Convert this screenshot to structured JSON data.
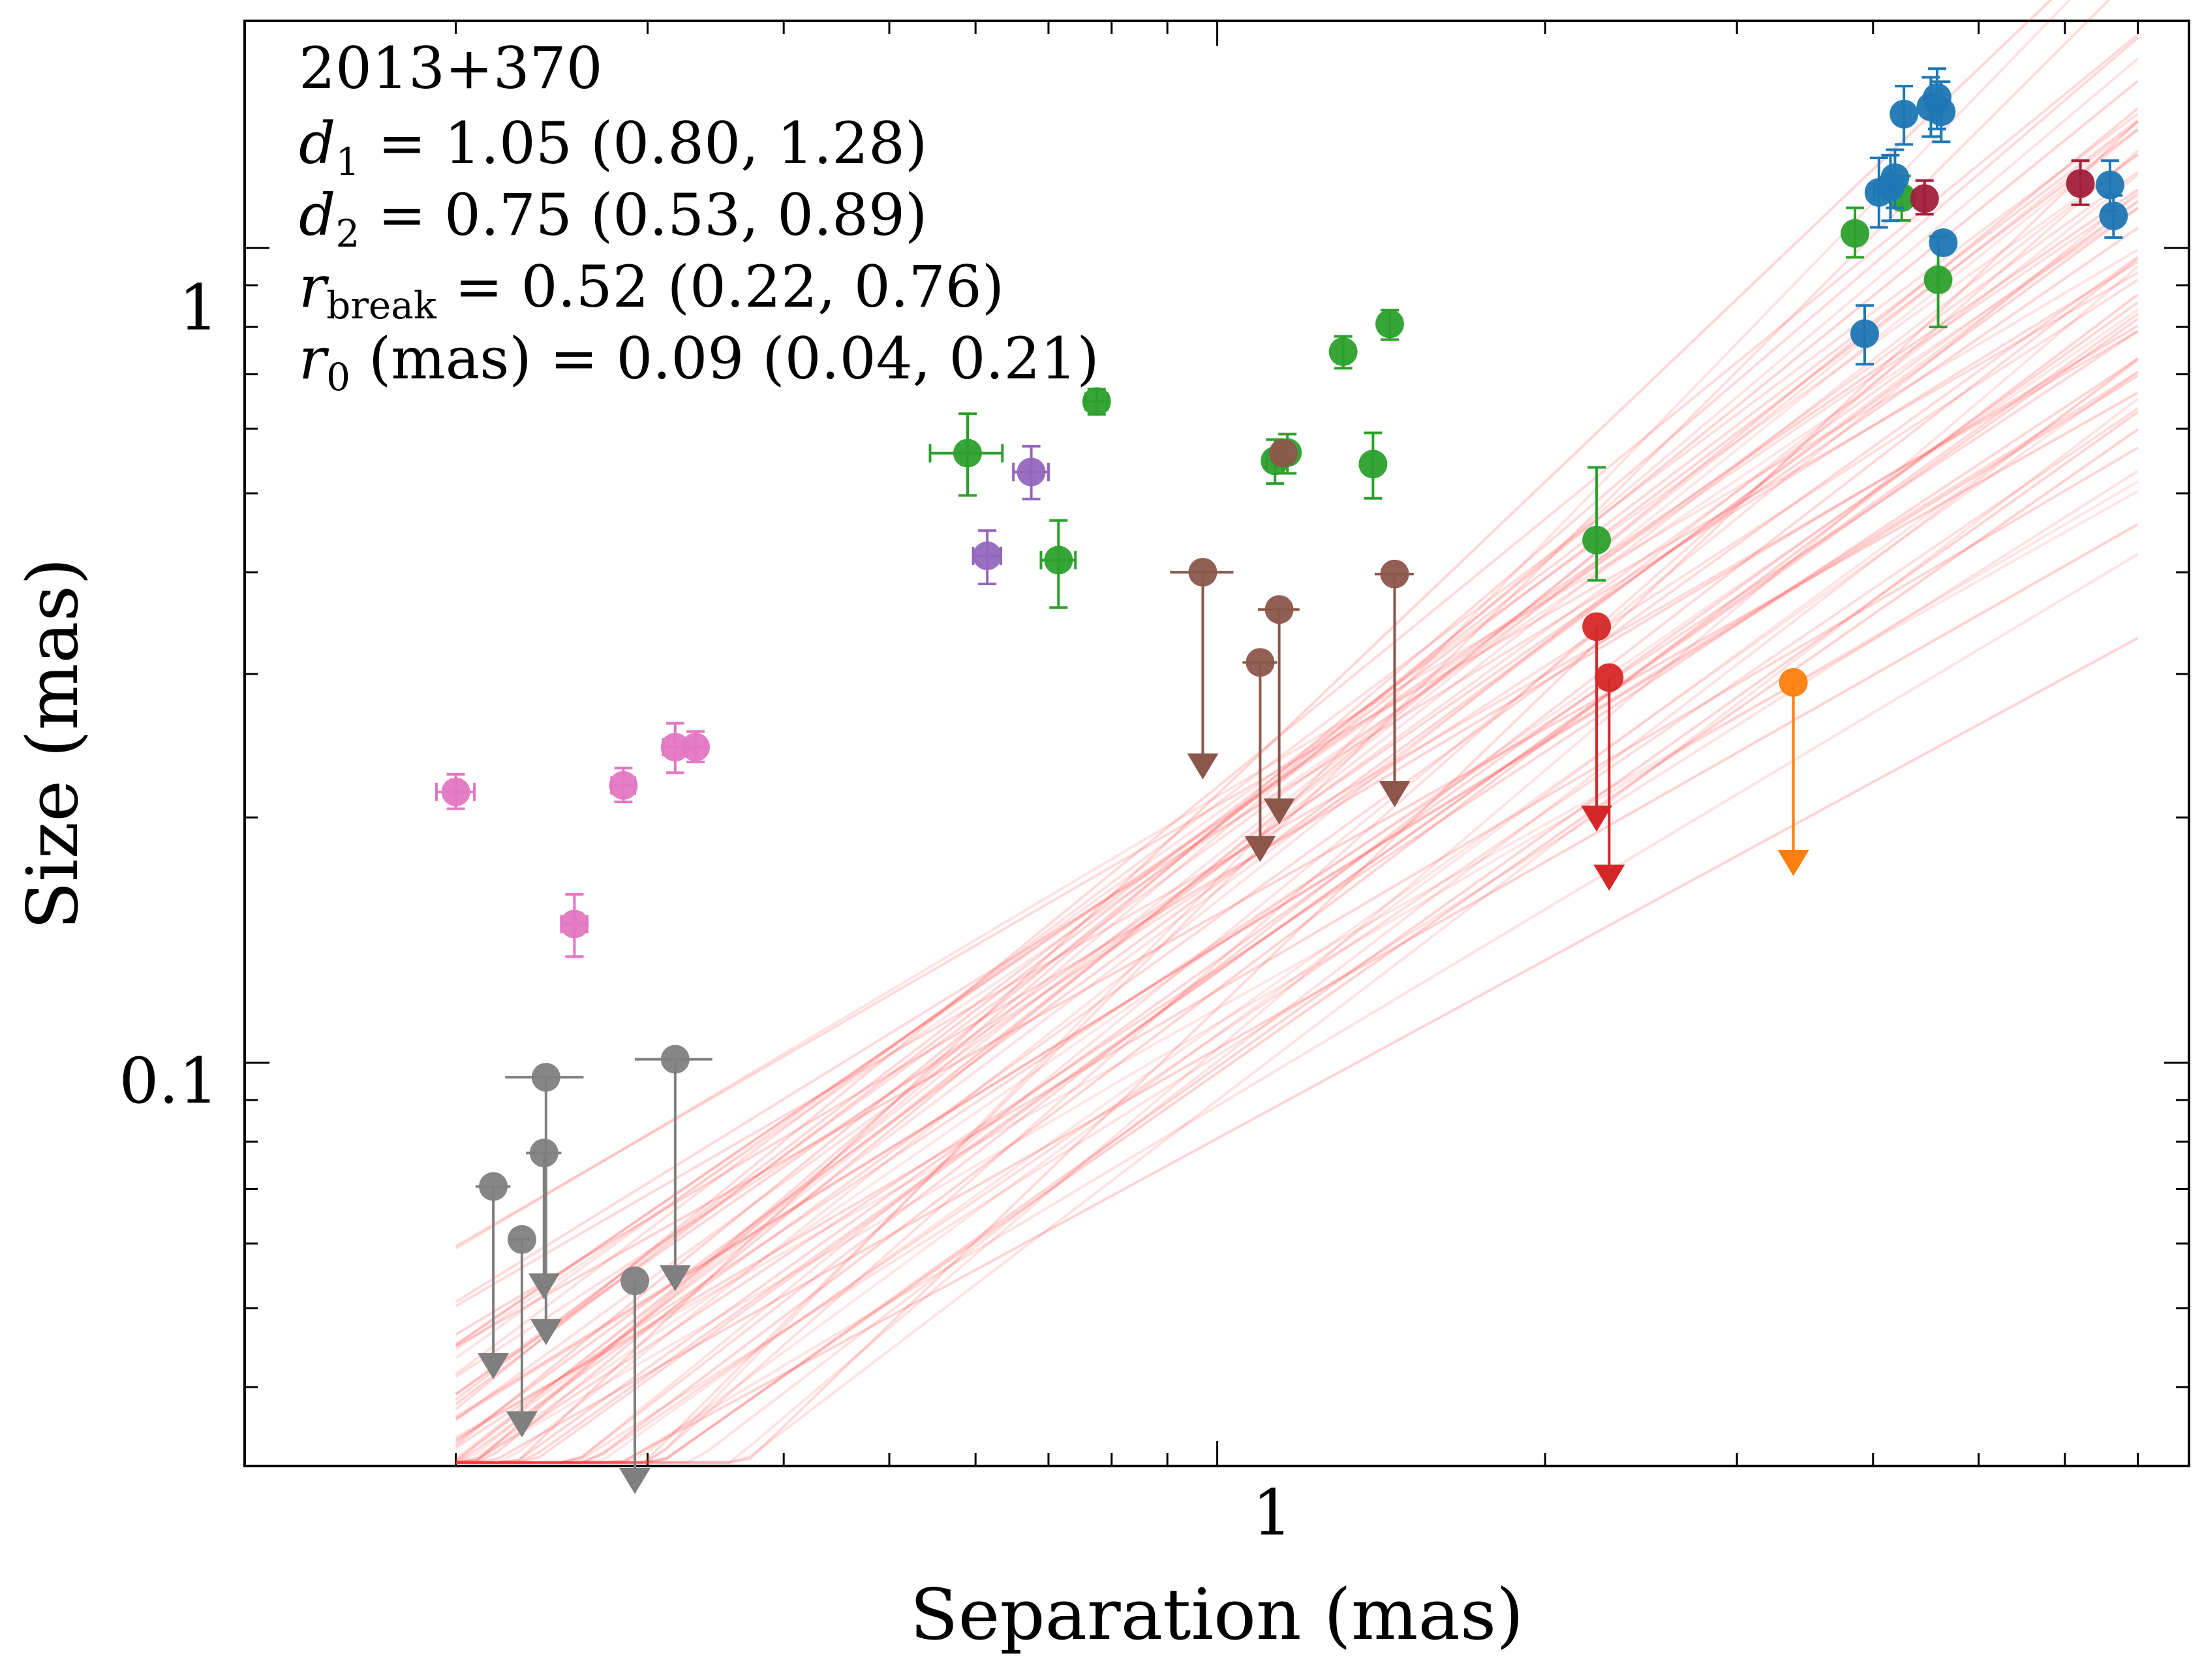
{
  "chart_data": {
    "type": "scatter",
    "title": "2013+370",
    "xlabel": "Separation (mas)",
    "ylabel": "Size (mas)",
    "xscale": "log",
    "yscale": "log",
    "xlim": [
      0.128,
      7.8
    ],
    "ylim": [
      0.032,
      1.9
    ],
    "x_tick_labels": [
      {
        "value": 1,
        "label": "1"
      }
    ],
    "y_tick_labels": [
      {
        "value": 0.1,
        "label": "0.1"
      },
      {
        "value": 1,
        "label": "1"
      }
    ],
    "grid": false,
    "annotations": [
      {
        "key": "source",
        "text": "2013+370"
      },
      {
        "key": "d1",
        "sym": "d",
        "sub": "1",
        "text": " = 1.05 (0.80, 1.28)"
      },
      {
        "key": "d2",
        "sym": "d",
        "sub": "2",
        "text": " = 0.75 (0.53, 0.89)"
      },
      {
        "key": "rbreak",
        "sym": "r",
        "sub": "break",
        "text": " = 0.52 (0.22, 0.76)"
      },
      {
        "key": "r0",
        "sym": "r",
        "sub": "0",
        "text": " (mas) = 0.09 (0.04, 0.21)"
      }
    ],
    "model": {
      "name": "broken power-law posterior draws",
      "color": "#ff3333",
      "n_draws": 60,
      "x_range": [
        0.2,
        7.0
      ],
      "median": {
        "d1": 1.05,
        "d2": 0.75,
        "r_break": 0.52,
        "r0": 0.09
      }
    },
    "series": [
      {
        "name": "pink",
        "color": "#e377c2",
        "points": [
          {
            "x": 0.2,
            "y": 0.215,
            "ylo": 0.205,
            "yhi": 0.226,
            "xerr": 0.008
          },
          {
            "x": 0.257,
            "y": 0.148,
            "ylo": 0.135,
            "yhi": 0.161,
            "xerr": 0.007
          },
          {
            "x": 0.285,
            "y": 0.219,
            "ylo": 0.209,
            "yhi": 0.23,
            "xerr": 0.007
          },
          {
            "x": 0.318,
            "y": 0.244,
            "ylo": 0.227,
            "yhi": 0.261,
            "xerr": 0.008
          },
          {
            "x": 0.332,
            "y": 0.244,
            "ylo": 0.234,
            "yhi": 0.255,
            "xerr": 0.007
          }
        ]
      },
      {
        "name": "purple",
        "color": "#9467bd",
        "points": [
          {
            "x": 0.615,
            "y": 0.419,
            "ylo": 0.387,
            "yhi": 0.45,
            "xerr": 0.018
          },
          {
            "x": 0.675,
            "y": 0.531,
            "ylo": 0.492,
            "yhi": 0.571,
            "xerr": 0.025
          }
        ]
      },
      {
        "name": "green",
        "color": "#2ca02c",
        "points": [
          {
            "x": 0.59,
            "y": 0.56,
            "ylo": 0.497,
            "yhi": 0.626,
            "xerr": 0.045
          },
          {
            "x": 0.715,
            "y": 0.414,
            "ylo": 0.362,
            "yhi": 0.463,
            "xerr": 0.026
          },
          {
            "x": 0.775,
            "y": 0.648,
            "ylo": 0.625,
            "yhi": 0.671,
            "xerr": 0.018
          },
          {
            "x": 1.13,
            "y": 0.548,
            "ylo": 0.514,
            "yhi": 0.582,
            "xerr": 0.02
          },
          {
            "x": 1.16,
            "y": 0.561,
            "ylo": 0.529,
            "yhi": 0.591,
            "xerr": 0.0
          },
          {
            "x": 1.305,
            "y": 0.746,
            "ylo": 0.712,
            "yhi": 0.779,
            "xerr": 0.0
          },
          {
            "x": 1.39,
            "y": 0.543,
            "ylo": 0.493,
            "yhi": 0.593,
            "xerr": 0.0
          },
          {
            "x": 1.44,
            "y": 0.807,
            "ylo": 0.772,
            "yhi": 0.839,
            "xerr": 0.0
          },
          {
            "x": 2.23,
            "y": 0.438,
            "ylo": 0.391,
            "yhi": 0.538,
            "xerr": 0.0
          },
          {
            "x": 3.85,
            "y": 1.042,
            "ylo": 0.974,
            "yhi": 1.12,
            "xerr": 0.0
          },
          {
            "x": 4.25,
            "y": 1.153,
            "ylo": 1.081,
            "yhi": 1.226,
            "xerr": 0.0
          },
          {
            "x": 4.59,
            "y": 0.914,
            "ylo": 0.8,
            "yhi": 1.033,
            "xerr": 0.0
          }
        ]
      },
      {
        "name": "blue",
        "color": "#1f77b4",
        "points": [
          {
            "x": 3.93,
            "y": 0.785,
            "ylo": 0.72,
            "yhi": 0.85,
            "xerr": 0.0
          },
          {
            "x": 4.05,
            "y": 1.17,
            "ylo": 1.06,
            "yhi": 1.29,
            "xerr": 0.04
          },
          {
            "x": 4.15,
            "y": 1.19,
            "ylo": 1.08,
            "yhi": 1.3,
            "xerr": 0.05
          },
          {
            "x": 4.19,
            "y": 1.22,
            "ylo": 1.12,
            "yhi": 1.32,
            "xerr": 0.0
          },
          {
            "x": 4.27,
            "y": 1.46,
            "ylo": 1.34,
            "yhi": 1.58,
            "xerr": 0.0
          },
          {
            "x": 4.52,
            "y": 1.49,
            "ylo": 1.37,
            "yhi": 1.62,
            "xerr": 0.0
          },
          {
            "x": 4.58,
            "y": 1.53,
            "ylo": 1.4,
            "yhi": 1.66,
            "xerr": 0.0
          },
          {
            "x": 4.62,
            "y": 1.47,
            "ylo": 1.35,
            "yhi": 1.6,
            "xerr": 0.0
          },
          {
            "x": 4.64,
            "y": 1.015,
            "ylo": 0.0,
            "yhi": 0.0,
            "xerr": 0.0
          },
          {
            "x": 6.65,
            "y": 1.095,
            "ylo": 1.03,
            "yhi": 1.16,
            "xerr": 0.0
          },
          {
            "x": 6.6,
            "y": 1.195,
            "ylo": 1.11,
            "yhi": 1.28,
            "xerr": 0.0
          }
        ]
      },
      {
        "name": "darkred",
        "color": "#a11f3a",
        "points": [
          {
            "x": 4.46,
            "y": 1.15,
            "ylo": 1.1,
            "yhi": 1.21,
            "xerr": 0.0
          },
          {
            "x": 6.2,
            "y": 1.2,
            "ylo": 1.13,
            "yhi": 1.28,
            "xerr": 0.0
          }
        ]
      },
      {
        "name": "brown (upper limits)",
        "color": "#8c564b",
        "points": [
          {
            "x": 0.97,
            "y": 0.4,
            "lim": 0.226,
            "xerr": 0.065
          },
          {
            "x": 1.095,
            "y": 0.31,
            "lim": 0.179,
            "xerr": 0.04
          },
          {
            "x": 1.14,
            "y": 0.36,
            "lim": 0.199,
            "xerr": 0.05
          },
          {
            "x": 1.455,
            "y": 0.398,
            "lim": 0.209,
            "xerr": 0.06
          },
          {
            "x": 1.15,
            "y": 0.56,
            "lim": null,
            "xerr": 0.0
          }
        ]
      },
      {
        "name": "red (upper limits)",
        "color": "#d62728",
        "points": [
          {
            "x": 2.23,
            "y": 0.343,
            "lim": 0.195,
            "xerr": 0.0
          },
          {
            "x": 2.29,
            "y": 0.297,
            "lim": 0.165,
            "xerr": 0.0
          }
        ]
      },
      {
        "name": "orange (upper limit)",
        "color": "#ff7f0e",
        "points": [
          {
            "x": 3.38,
            "y": 0.293,
            "lim": 0.172,
            "xerr": 0.0
          }
        ]
      },
      {
        "name": "gray (upper limits)",
        "color": "#7f7f7f",
        "points": [
          {
            "x": 0.2165,
            "y": 0.0705,
            "lim": 0.0415,
            "xerr": 0.008
          },
          {
            "x": 0.23,
            "y": 0.0607,
            "lim": 0.0352,
            "xerr": 0.005
          },
          {
            "x": 0.242,
            "y": 0.096,
            "lim": 0.0457,
            "xerr": 0.02
          },
          {
            "x": 0.241,
            "y": 0.0775,
            "lim": 0.052,
            "xerr": 0.009
          },
          {
            "x": 0.292,
            "y": 0.054,
            "lim": 0.03,
            "xerr": 0.0
          },
          {
            "x": 0.318,
            "y": 0.101,
            "lim": 0.0532,
            "xerr": 0.026
          }
        ]
      }
    ]
  }
}
